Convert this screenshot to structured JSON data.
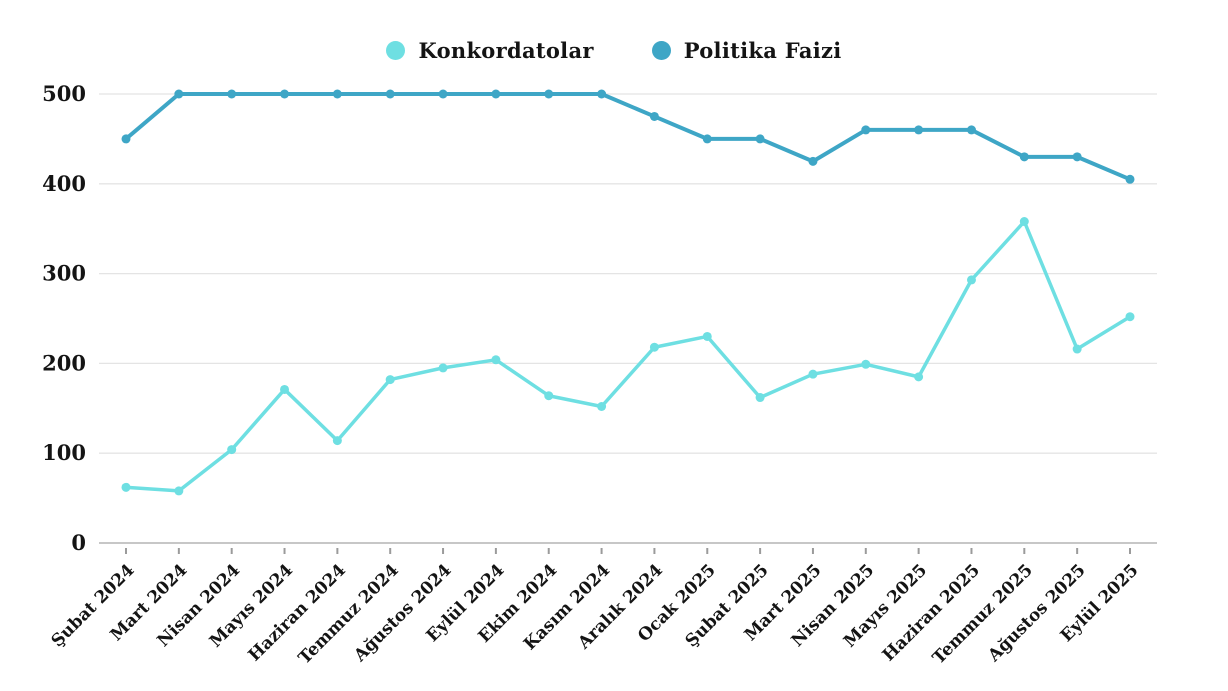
{
  "legend": {
    "items": [
      {
        "label": "Konkordatolar",
        "color": "#6EDFE2"
      },
      {
        "label": "Politika Faizi",
        "color": "#3EA6C6"
      }
    ]
  },
  "chart_data": {
    "type": "line",
    "categories": [
      "Şubat 2024",
      "Mart 2024",
      "Nisan 2024",
      "Mayıs 2024",
      "Haziran 2024",
      "Temmuz 2024",
      "Ağustos 2024",
      "Eylül 2024",
      "Ekim 2024",
      "Kasım 2024",
      "Aralık 2024",
      "Ocak 2025",
      "Şubat 2025",
      "Mart 2025",
      "Nisan 2025",
      "Mayıs 2025",
      "Haziran 2025",
      "Temmuz 2025",
      "Ağustos 2025",
      "Eylül 2025"
    ],
    "series": [
      {
        "name": "Konkordatolar",
        "color": "#6EDFE2",
        "values": [
          62,
          58,
          104,
          171,
          114,
          182,
          195,
          204,
          164,
          152,
          218,
          230,
          162,
          188,
          199,
          185,
          293,
          358,
          216,
          252
        ]
      },
      {
        "name": "Politika Faizi",
        "color": "#3EA6C6",
        "values": [
          450,
          500,
          500,
          500,
          500,
          500,
          500,
          500,
          500,
          500,
          475,
          450,
          450,
          425,
          460,
          460,
          460,
          430,
          430,
          405
        ]
      }
    ],
    "ylim": [
      0,
      500
    ],
    "yticks": [
      0,
      100,
      200,
      300,
      400,
      500
    ],
    "grid": "horizontal-only",
    "legend_position": "top-center",
    "x_tick_rotation_deg": -45,
    "styles": {
      "background": "#ffffff",
      "gridline_color": "#e4e4e4",
      "baseline_color": "#c7c7c7",
      "axis_tick_color": "#9b9b9b",
      "label_color": "#141414"
    }
  }
}
